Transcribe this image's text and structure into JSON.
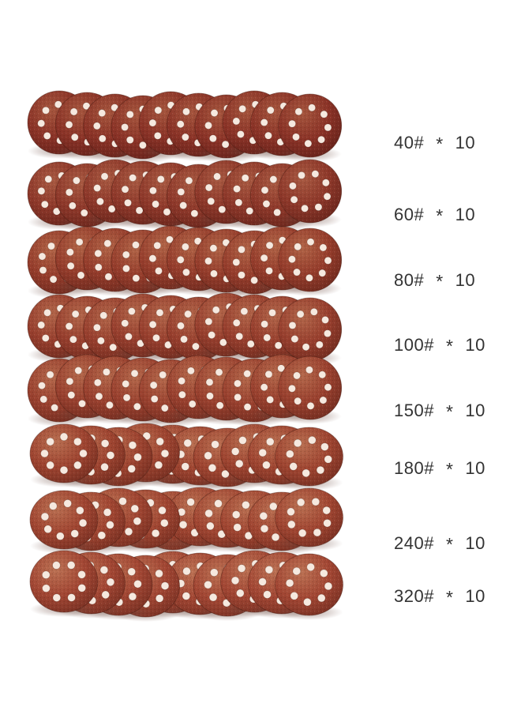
{
  "image": {
    "type": "product-photo",
    "subject": "8-hole hook-and-loop sandpaper disc assortment, 8 grits x 10 discs",
    "background_color": "#ffffff",
    "discs_per_row": 10,
    "holes_per_disc": 8,
    "hole_color": "#f6e9df",
    "label_color": "#333333",
    "shadow_color": "#6e4b41",
    "rows": [
      {
        "grit": "40#",
        "times": "*",
        "count": "10",
        "label": "40# * 10",
        "colors": {
          "base": "#8b3327",
          "light": "#a6563e",
          "dark": "#63211a"
        }
      },
      {
        "grit": "60#",
        "times": "*",
        "count": "10",
        "label": "60# * 10",
        "colors": {
          "base": "#8e382a",
          "light": "#a95a42",
          "dark": "#66241b"
        }
      },
      {
        "grit": "80#",
        "times": "*",
        "count": "10",
        "label": "80# * 10",
        "colors": {
          "base": "#963d2c",
          "light": "#b16447",
          "dark": "#6b281d"
        }
      },
      {
        "grit": "100#",
        "times": "*",
        "count": "10",
        "label": "100# * 10",
        "colors": {
          "base": "#983f2e",
          "light": "#b2664a",
          "dark": "#6d2a1e"
        }
      },
      {
        "grit": "150#",
        "times": "*",
        "count": "10",
        "label": "150# * 10",
        "colors": {
          "base": "#9a412f",
          "light": "#b4684b",
          "dark": "#6f2b1f"
        }
      },
      {
        "grit": "180#",
        "times": "*",
        "count": "10",
        "label": "180# * 10",
        "colors": {
          "base": "#9f4531",
          "light": "#b96f51",
          "dark": "#732d20"
        }
      },
      {
        "grit": "240#",
        "times": "*",
        "count": "10",
        "label": "240# * 10",
        "colors": {
          "base": "#a14632",
          "light": "#ba7052",
          "dark": "#752e21"
        }
      },
      {
        "grit": "320#",
        "times": "*",
        "count": "10",
        "label": "320# * 10",
        "colors": {
          "base": "#a34734",
          "light": "#bc7254",
          "dark": "#762f22"
        }
      }
    ]
  }
}
